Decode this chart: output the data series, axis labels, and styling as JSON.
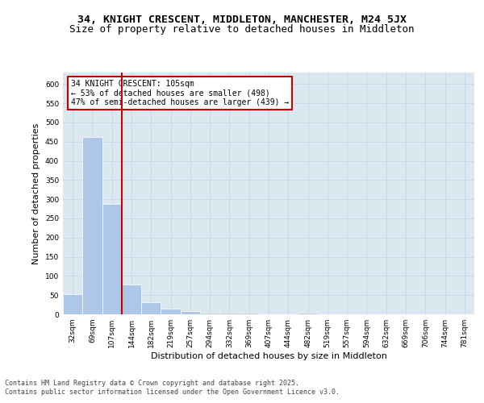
{
  "title_line1": "34, KNIGHT CRESCENT, MIDDLETON, MANCHESTER, M24 5JX",
  "title_line2": "Size of property relative to detached houses in Middleton",
  "xlabel": "Distribution of detached houses by size in Middleton",
  "ylabel": "Number of detached properties",
  "categories": [
    "32sqm",
    "69sqm",
    "107sqm",
    "144sqm",
    "182sqm",
    "219sqm",
    "257sqm",
    "294sqm",
    "332sqm",
    "369sqm",
    "407sqm",
    "444sqm",
    "482sqm",
    "519sqm",
    "557sqm",
    "594sqm",
    "632sqm",
    "669sqm",
    "706sqm",
    "744sqm",
    "781sqm"
  ],
  "values": [
    53,
    462,
    288,
    77,
    31,
    15,
    9,
    5,
    4,
    4,
    0,
    0,
    5,
    0,
    0,
    0,
    0,
    0,
    0,
    0,
    0
  ],
  "bar_color": "#aec6e8",
  "vline_x_index": 2,
  "vline_color": "#cc0000",
  "annotation_text": "34 KNIGHT CRESCENT: 105sqm\n← 53% of detached houses are smaller (498)\n47% of semi-detached houses are larger (439) →",
  "annotation_box_color": "#cc0000",
  "ylim": [
    0,
    630
  ],
  "yticks": [
    0,
    50,
    100,
    150,
    200,
    250,
    300,
    350,
    400,
    450,
    500,
    550,
    600
  ],
  "grid_color": "#c8d8e8",
  "background_color": "#dce8f0",
  "footer_line1": "Contains HM Land Registry data © Crown copyright and database right 2025.",
  "footer_line2": "Contains public sector information licensed under the Open Government Licence v3.0.",
  "title_fontsize": 9.5,
  "subtitle_fontsize": 9,
  "label_fontsize": 8,
  "tick_fontsize": 6.5,
  "footer_fontsize": 6,
  "ann_fontsize": 7
}
